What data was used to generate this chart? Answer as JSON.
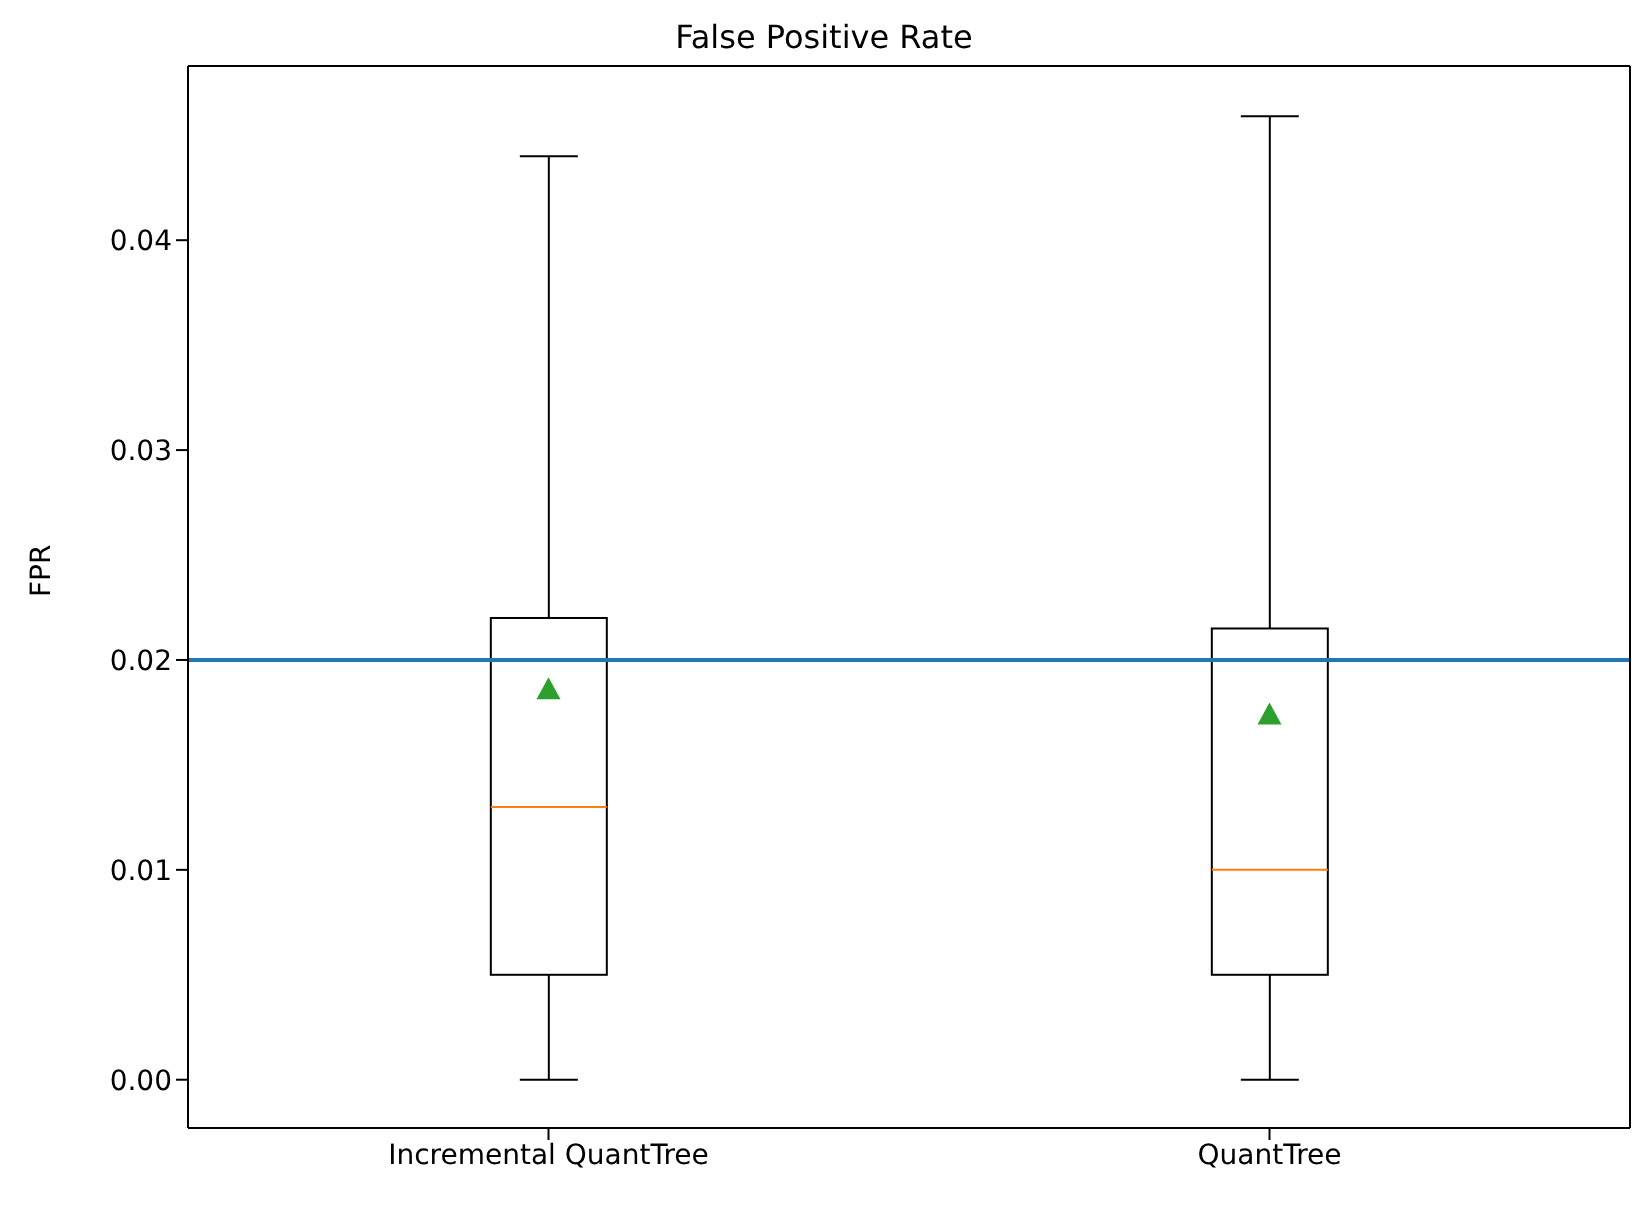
{
  "chart_data": {
    "type": "box",
    "title": "False Positive Rate",
    "ylabel": "FPR",
    "categories": [
      "Incremental QuantTree",
      "QuantTree"
    ],
    "boxes": [
      {
        "low": 0,
        "q1": 0.005,
        "median": 0.013,
        "q3": 0.022,
        "high": 0.044,
        "mean": 0.0186
      },
      {
        "low": 0,
        "q1": 0.005,
        "median": 0.01,
        "q3": 0.0215,
        "high": 0.0459,
        "mean": 0.0174
      }
    ],
    "ylim": [
      -0.0023,
      0.0483
    ],
    "yticks": [
      {
        "value": 0,
        "label": "0.00"
      },
      {
        "value": 0.01,
        "label": "0.01"
      },
      {
        "value": 0.02,
        "label": "0.02"
      },
      {
        "value": 0.03,
        "label": "0.03"
      },
      {
        "value": 0.04,
        "label": "0.04"
      }
    ],
    "ref_lines": [
      {
        "axis": "y",
        "value": 0.02,
        "color": "#1f77b4"
      }
    ],
    "grid": false,
    "legend": false
  }
}
